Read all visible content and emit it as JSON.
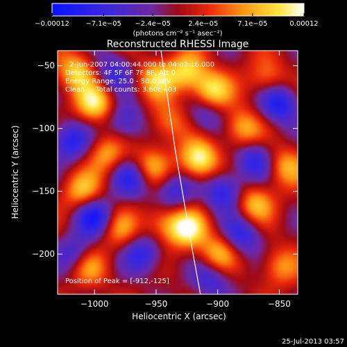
{
  "chart_data": {
    "type": "heatmap",
    "title": "Reconstructed RHESSI Image",
    "xlabel": "Heliocentric X (arcsec)",
    "ylabel": "Heliocentric Y (arcsec)",
    "xlim": [
      -1030,
      -835
    ],
    "ylim": [
      -232,
      -38
    ],
    "xticks": [
      {
        "value": -1000,
        "label": "−1000"
      },
      {
        "value": -950,
        "label": "−950"
      },
      {
        "value": -900,
        "label": "−900"
      },
      {
        "value": -850,
        "label": "−850"
      }
    ],
    "yticks": [
      {
        "value": -50,
        "label": "−50"
      },
      {
        "value": -100,
        "label": "−100"
      },
      {
        "value": -150,
        "label": "−150"
      },
      {
        "value": -200,
        "label": "−200"
      }
    ],
    "colorbar": {
      "range": [
        -0.00012,
        0.00012
      ],
      "ticks": [
        {
          "value": -0.00012,
          "label": "−0.00012"
        },
        {
          "value": -7.1e-05,
          "label": "−7.1e−05"
        },
        {
          "value": -2.4e-05,
          "label": "−2.4e−05"
        },
        {
          "value": 2.4e-05,
          "label": "2.4e−05"
        },
        {
          "value": 7.1e-05,
          "label": "7.1e−05"
        },
        {
          "value": 0.00012,
          "label": "0.00012"
        }
      ],
      "unit_label": "(photons cm⁻² s⁻¹ asec⁻²)"
    },
    "annotations": {
      "time": "2-Jun-2007 04:00:44.000 to 04:03:16.000",
      "detectors": "Detectors: 4F 5F 6F 7F 8F, Att 0",
      "energy": "Energy Range: 25.0 - 50.0 keV",
      "clean": "Clean     Total counts: 3.60E+03",
      "peak": "Position of Peak = [-912,-125]"
    },
    "peak": {
      "x": -912,
      "y": -125
    },
    "limb_curve": [
      {
        "x": -946,
        "y": -38
      },
      {
        "x": -940,
        "y": -80
      },
      {
        "x": -934,
        "y": -120
      },
      {
        "x": -927,
        "y": -160
      },
      {
        "x": -920,
        "y": -200
      },
      {
        "x": -914,
        "y": -232
      }
    ],
    "blobs": [
      {
        "x": -1015,
        "y": -55,
        "v": 9e-05
      },
      {
        "x": -1000,
        "y": -80,
        "v": 0.0001
      },
      {
        "x": -990,
        "y": -120,
        "v": 7e-05
      },
      {
        "x": -1010,
        "y": -150,
        "v": 8e-05
      },
      {
        "x": -980,
        "y": -180,
        "v": 6e-05
      },
      {
        "x": -1005,
        "y": -210,
        "v": 7e-05
      },
      {
        "x": -950,
        "y": -60,
        "v": 8e-05
      },
      {
        "x": -940,
        "y": -95,
        "v": 6e-05
      },
      {
        "x": -955,
        "y": -130,
        "v": 7e-05
      },
      {
        "x": -945,
        "y": -175,
        "v": 6e-05
      },
      {
        "x": -925,
        "y": -55,
        "v": 9e-05
      },
      {
        "x": -905,
        "y": -70,
        "v": 0.0001
      },
      {
        "x": -880,
        "y": -100,
        "v": 8e-05
      },
      {
        "x": -915,
        "y": -125,
        "v": 0.00012
      },
      {
        "x": -925,
        "y": -180,
        "v": 0.00011
      },
      {
        "x": -900,
        "y": -200,
        "v": 8e-05
      },
      {
        "x": -870,
        "y": -160,
        "v": 8e-05
      },
      {
        "x": -845,
        "y": -130,
        "v": 7e-05
      },
      {
        "x": -850,
        "y": -210,
        "v": 6e-05
      },
      {
        "x": -860,
        "y": -60,
        "v": 6e-05
      },
      {
        "x": -1020,
        "y": -110,
        "v": -9e-05
      },
      {
        "x": -1000,
        "y": -170,
        "v": -0.0001
      },
      {
        "x": -970,
        "y": -140,
        "v": -8e-05
      },
      {
        "x": -975,
        "y": -95,
        "v": -7e-05
      },
      {
        "x": -960,
        "y": -200,
        "v": -8e-05
      },
      {
        "x": -935,
        "y": -150,
        "v": -7e-05
      },
      {
        "x": -895,
        "y": -150,
        "v": -9e-05
      },
      {
        "x": -870,
        "y": -125,
        "v": -8e-05
      },
      {
        "x": -850,
        "y": -80,
        "v": -0.0001
      },
      {
        "x": -880,
        "y": -185,
        "v": -8e-05
      },
      {
        "x": -905,
        "y": -220,
        "v": -7e-05
      },
      {
        "x": -1015,
        "y": -200,
        "v": -7e-05
      },
      {
        "x": -985,
        "y": -55,
        "v": -7e-05
      },
      {
        "x": -910,
        "y": -90,
        "v": -6e-05
      }
    ]
  },
  "footer": {
    "timestamp": "25-Jul-2013 03:57"
  }
}
